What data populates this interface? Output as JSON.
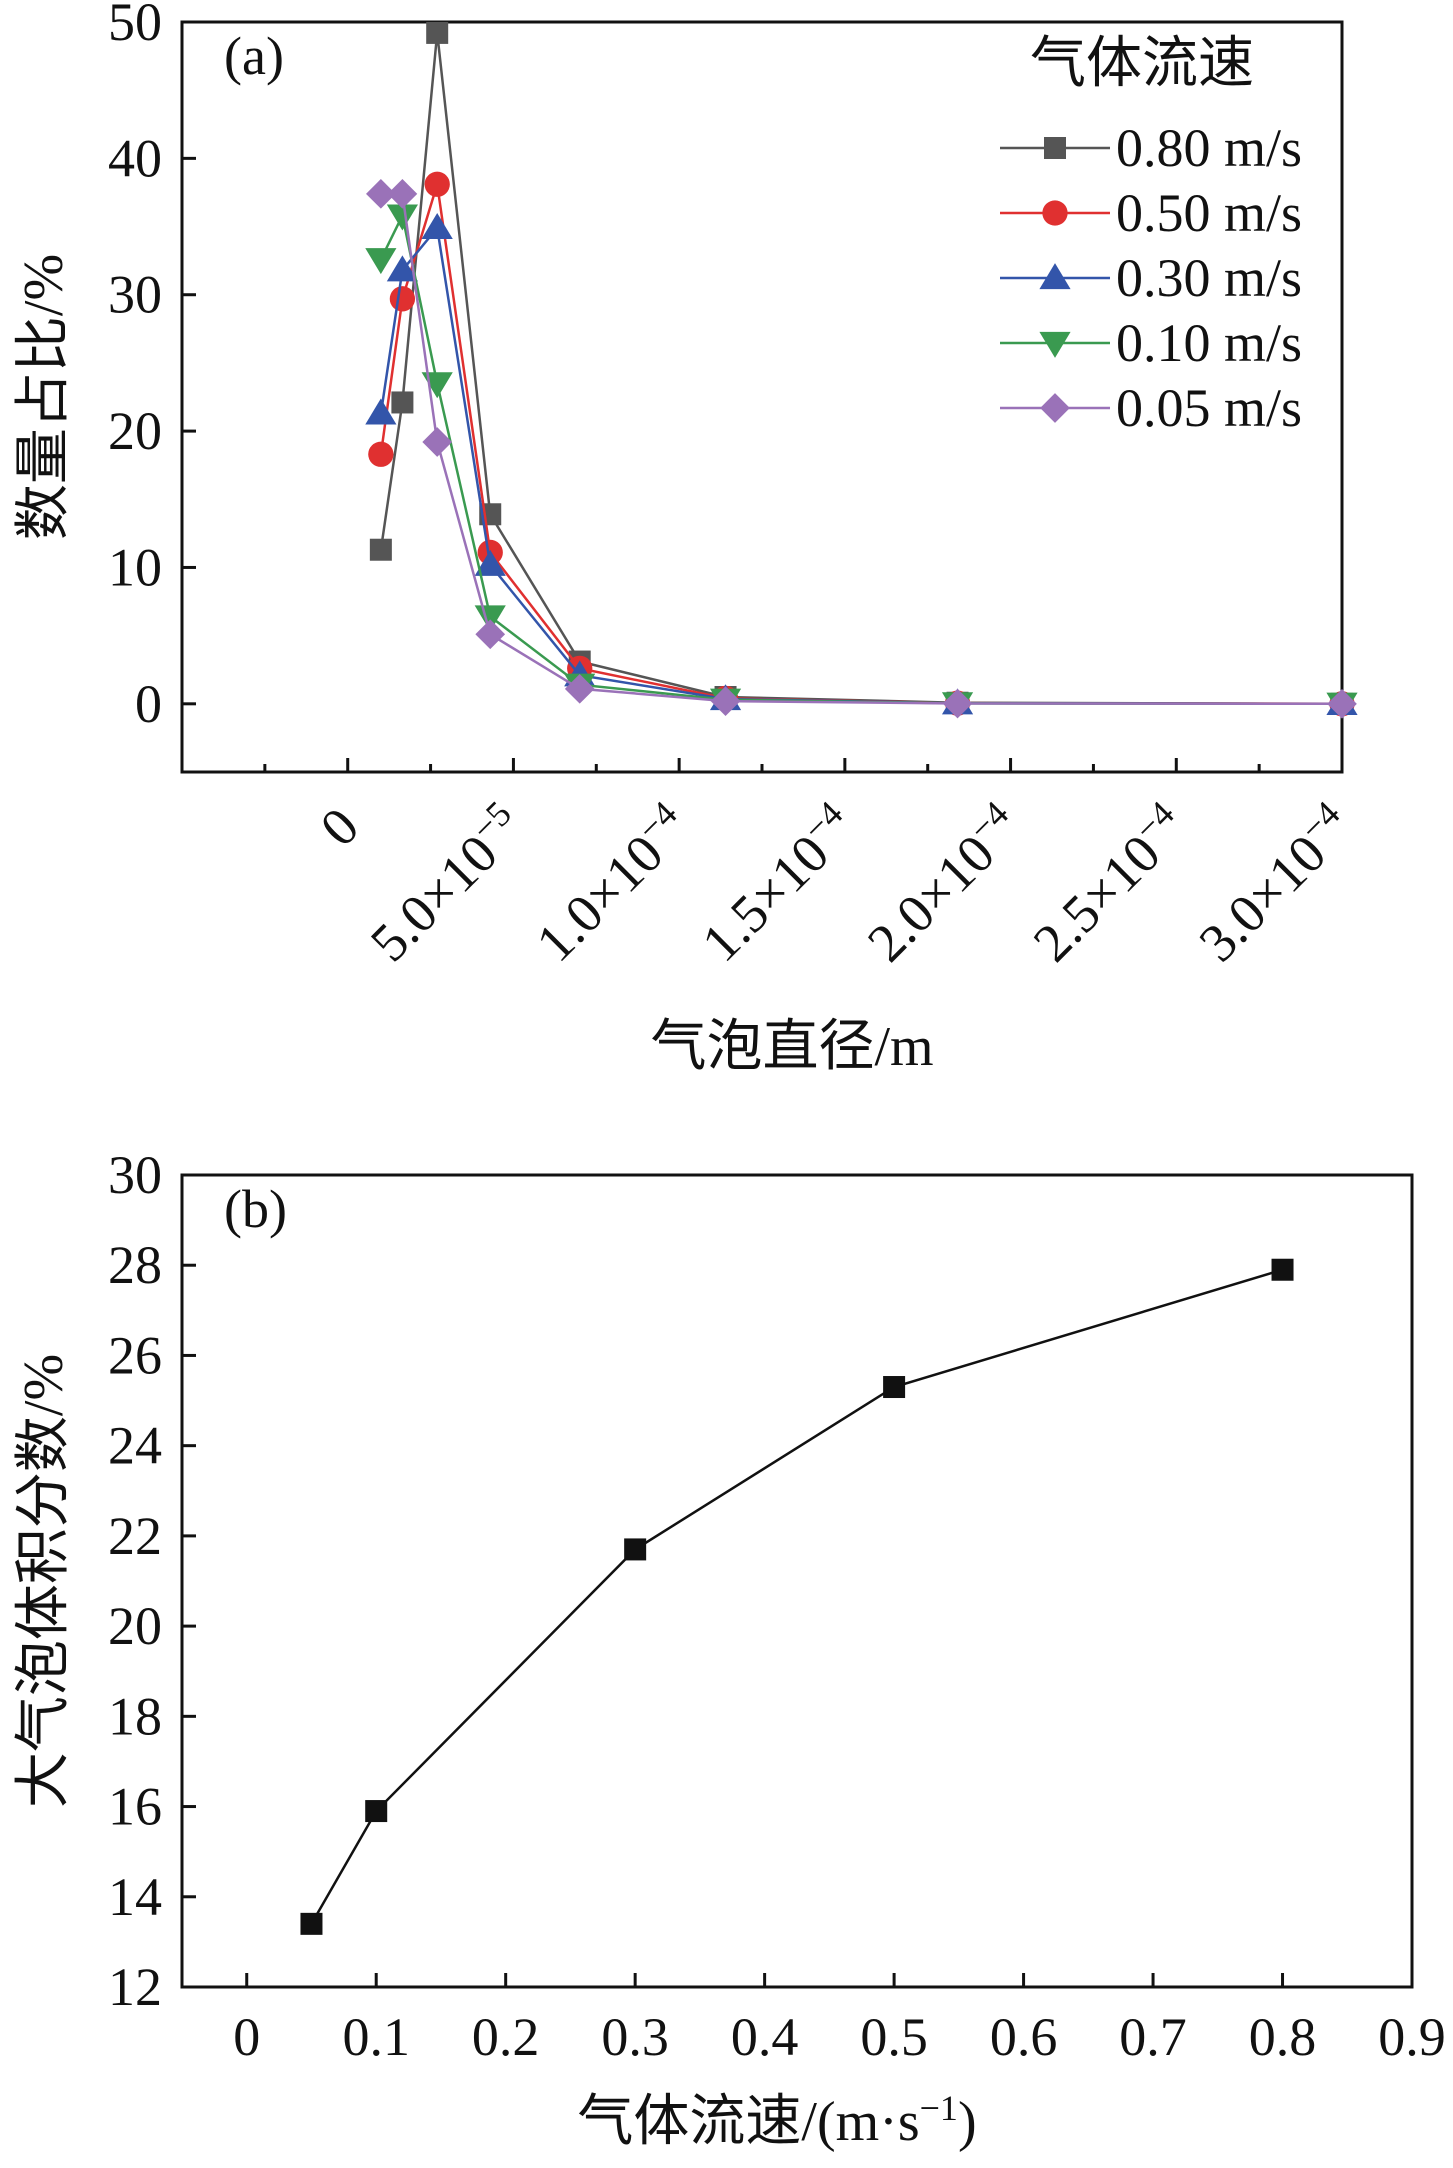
{
  "chart_data": [
    {
      "type": "line",
      "panel_label": "(a)",
      "xlabel": "气泡直径/m",
      "ylabel": "数量占比/%",
      "xlim": [
        -5e-05,
        0.0003
      ],
      "ylim": [
        -5,
        50
      ],
      "x_ticks": [
        0,
        5e-05,
        0.0001,
        0.00015,
        0.0002,
        0.00025,
        0.0003
      ],
      "x_tick_labels": [
        {
          "base": "0",
          "exp": ""
        },
        {
          "base": "5.0×10",
          "exp": "−5"
        },
        {
          "base": "1.0×10",
          "exp": "−4"
        },
        {
          "base": "1.5×10",
          "exp": "−4"
        },
        {
          "base": "2.0×10",
          "exp": "−4"
        },
        {
          "base": "2.5×10",
          "exp": "−4"
        },
        {
          "base": "3.0×10",
          "exp": "−4"
        }
      ],
      "y_ticks": [
        0,
        10,
        20,
        30,
        40,
        50
      ],
      "y_tick_labels": [
        "0",
        "10",
        "20",
        "30",
        "40",
        "50"
      ],
      "grid": false,
      "legend": {
        "title": "气体流速",
        "position": "top-right"
      },
      "series": [
        {
          "name": "0.80 m/s",
          "color": "#555555",
          "marker": "square",
          "points": [
            [
              1e-05,
              11.3
            ],
            [
              1.65e-05,
              22.1
            ],
            [
              2.7e-05,
              49.2
            ],
            [
              4.3e-05,
              13.9
            ],
            [
              7e-05,
              3.1
            ],
            [
              0.000114,
              0.5
            ],
            [
              0.000184,
              0.08
            ],
            [
              0.0003,
              0.0
            ]
          ]
        },
        {
          "name": "0.50 m/s",
          "color": "#e03030",
          "marker": "circle",
          "points": [
            [
              1e-05,
              18.3
            ],
            [
              1.65e-05,
              29.7
            ],
            [
              2.7e-05,
              38.1
            ],
            [
              4.3e-05,
              11.1
            ],
            [
              7e-05,
              2.6
            ],
            [
              0.000114,
              0.4
            ],
            [
              0.000184,
              0.05
            ],
            [
              0.0003,
              0.0
            ]
          ]
        },
        {
          "name": "0.30 m/s",
          "color": "#3355aa",
          "marker": "triangle-up",
          "points": [
            [
              1e-05,
              21.3
            ],
            [
              1.65e-05,
              31.8
            ],
            [
              2.7e-05,
              34.9
            ],
            [
              4.3e-05,
              10.2
            ],
            [
              7e-05,
              2.1
            ],
            [
              0.000114,
              0.35
            ],
            [
              0.000184,
              0.04
            ],
            [
              0.0003,
              0.0
            ]
          ]
        },
        {
          "name": "0.10 m/s",
          "color": "#3a9a50",
          "marker": "triangle-down",
          "points": [
            [
              1e-05,
              32.6
            ],
            [
              1.65e-05,
              35.8
            ],
            [
              2.7e-05,
              23.5
            ],
            [
              4.3e-05,
              6.4
            ],
            [
              7e-05,
              1.4
            ],
            [
              0.000114,
              0.3
            ],
            [
              0.000184,
              0.03
            ],
            [
              0.0003,
              0.0
            ]
          ]
        },
        {
          "name": "0.05 m/s",
          "color": "#9a72b8",
          "marker": "diamond",
          "points": [
            [
              1e-05,
              37.4
            ],
            [
              1.65e-05,
              37.4
            ],
            [
              2.7e-05,
              19.2
            ],
            [
              4.3e-05,
              5.1
            ],
            [
              7e-05,
              1.1
            ],
            [
              0.000114,
              0.2
            ],
            [
              0.000184,
              0.02
            ],
            [
              0.0003,
              0.0
            ]
          ]
        }
      ]
    },
    {
      "type": "line",
      "panel_label": "(b)",
      "xlabel": "气体流速/(m·s",
      "xlabel_sup": "−1",
      "xlabel_end": ")",
      "ylabel": "大气泡体积分数/%",
      "xlim": [
        -0.05,
        0.9
      ],
      "ylim": [
        12,
        30
      ],
      "x_ticks": [
        0,
        0.1,
        0.2,
        0.3,
        0.4,
        0.5,
        0.6,
        0.7,
        0.8,
        0.9
      ],
      "x_tick_labels": [
        "0",
        "0.1",
        "0.2",
        "0.3",
        "0.4",
        "0.5",
        "0.6",
        "0.7",
        "0.8",
        "0.9"
      ],
      "y_ticks": [
        12,
        14,
        16,
        18,
        20,
        22,
        24,
        26,
        28,
        30
      ],
      "y_tick_labels": [
        "12",
        "14",
        "16",
        "18",
        "20",
        "22",
        "24",
        "26",
        "28",
        "30"
      ],
      "grid": false,
      "series": [
        {
          "color": "#111111",
          "marker": "square",
          "points": [
            [
              0.05,
              13.4
            ],
            [
              0.1,
              15.9
            ],
            [
              0.3,
              21.7
            ],
            [
              0.5,
              25.3
            ],
            [
              0.8,
              27.9
            ]
          ]
        }
      ]
    }
  ]
}
